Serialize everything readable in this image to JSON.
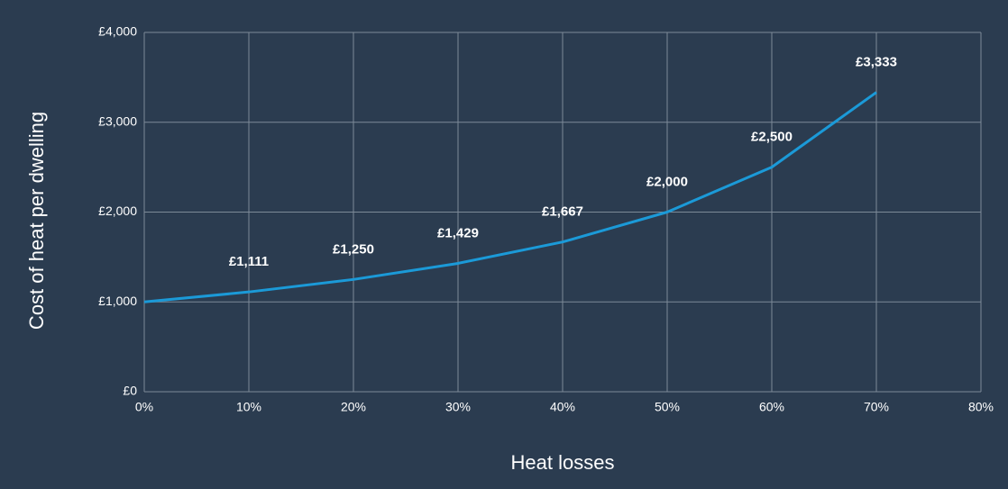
{
  "chart_data": {
    "type": "line",
    "x_label": "Heat losses",
    "y_label": "Cost of heat per dwelling",
    "x": [
      0,
      10,
      20,
      30,
      40,
      50,
      60,
      70
    ],
    "values": [
      1000,
      1111,
      1250,
      1429,
      1667,
      2000,
      2500,
      3333
    ],
    "value_labels": [
      null,
      "£1,111",
      "£1,250",
      "£1,429",
      "£1,667",
      "£2,000",
      "£2,500",
      "£3,333"
    ],
    "color": "#1b9ad8",
    "xlim": [
      0,
      80
    ],
    "xticks": [
      {
        "value": 0,
        "label": "0%"
      },
      {
        "value": 10,
        "label": "10%"
      },
      {
        "value": 20,
        "label": "20%"
      },
      {
        "value": 30,
        "label": "30%"
      },
      {
        "value": 40,
        "label": "40%"
      },
      {
        "value": 50,
        "label": "50%"
      },
      {
        "value": 60,
        "label": "60%"
      },
      {
        "value": 70,
        "label": "70%"
      },
      {
        "value": 80,
        "label": "80%"
      }
    ],
    "ylim": [
      0,
      4000
    ],
    "yticks": [
      {
        "value": 0,
        "label": "£0"
      },
      {
        "value": 1000,
        "label": "£1,000"
      },
      {
        "value": 2000,
        "label": "£2,000"
      },
      {
        "value": 3000,
        "label": "£3,000"
      },
      {
        "value": 4000,
        "label": "£4,000"
      }
    ],
    "grid": true
  }
}
